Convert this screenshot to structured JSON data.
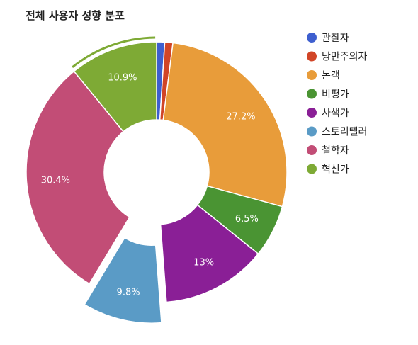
{
  "chart_data": {
    "type": "pie",
    "title": "전체 사용자 성향 분포",
    "donut": true,
    "legend_position": "right",
    "categories": [
      "관찰자",
      "낭만주의자",
      "논객",
      "비평가",
      "사색가",
      "스토리텔러",
      "철학자",
      "혁신가"
    ],
    "values": [
      1.0,
      1.0,
      27.2,
      6.5,
      13.0,
      9.8,
      30.4,
      10.9
    ],
    "labels": [
      "",
      "",
      "27.2%",
      "6.5%",
      "13%",
      "9.8%",
      "30.4%",
      "10.9%"
    ],
    "colors": [
      "#3e5fcf",
      "#d14527",
      "#e89c3a",
      "#4a9433",
      "#8a1f96",
      "#5a9bc6",
      "#c24d76",
      "#7eaa35"
    ],
    "exploded": "스토리텔러",
    "highlighted": "혁신가"
  }
}
